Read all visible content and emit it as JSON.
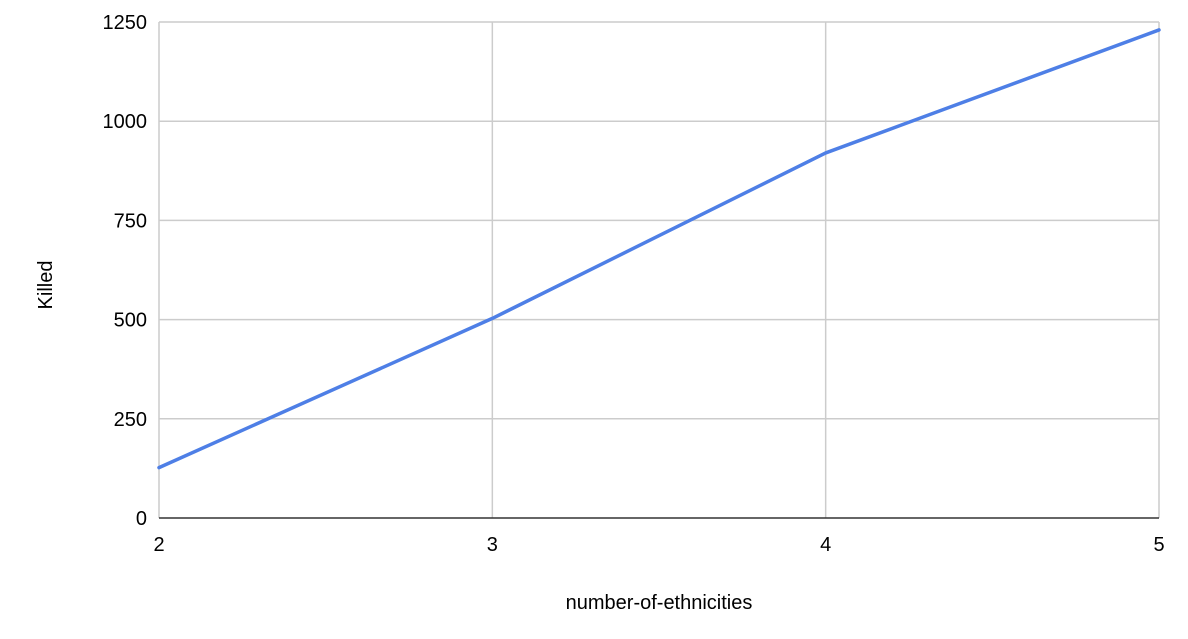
{
  "chart_data": {
    "type": "line",
    "title": "",
    "xlabel": "number-of-ethnicities",
    "ylabel": "Killed",
    "x": [
      2,
      3,
      4,
      5
    ],
    "series": [
      {
        "values": [
          127,
          503,
          920,
          1230
        ],
        "color": "#4e7fe6"
      }
    ],
    "xlim": [
      2,
      5
    ],
    "ylim": [
      0,
      1250
    ],
    "x_ticks": [
      2,
      3,
      4,
      5
    ],
    "y_ticks": [
      0,
      250,
      500,
      750,
      1000,
      1250
    ],
    "grid": true,
    "legend": "none"
  }
}
